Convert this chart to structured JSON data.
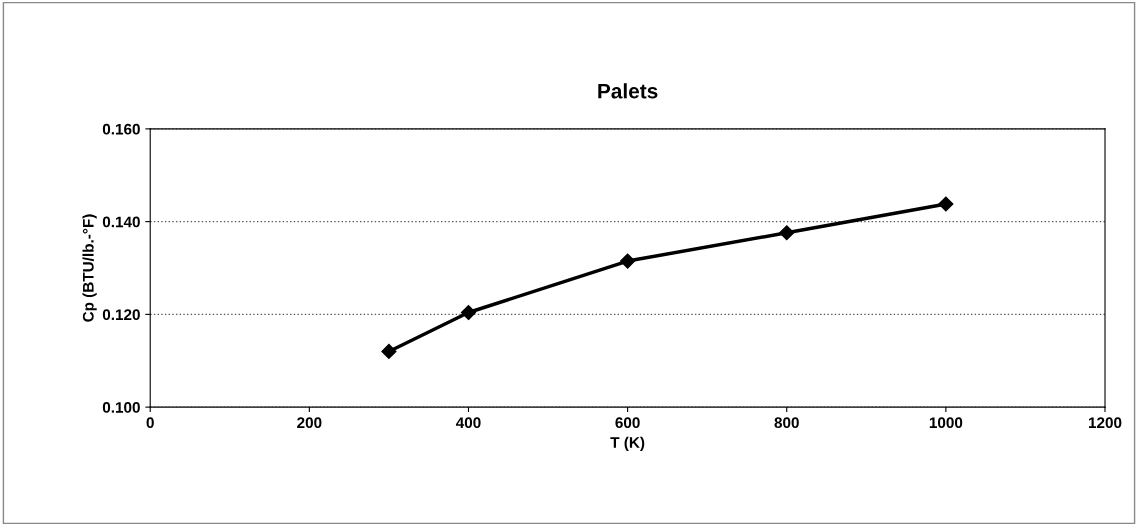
{
  "chart_data": {
    "type": "line",
    "title": "Palets",
    "xlabel": "T (K)",
    "ylabel": "Cp (BTU/lb.-°F)",
    "x": [
      300,
      400,
      600,
      800,
      1000
    ],
    "series": [
      {
        "color": "#000000",
        "values": [
          0.112,
          0.1204,
          0.1315,
          0.1376,
          0.1438
        ]
      }
    ],
    "xlim": [
      0,
      1200
    ],
    "xticks": [
      0,
      200,
      400,
      600,
      800,
      1000,
      1200
    ],
    "ylim": [
      0.1,
      0.16
    ],
    "yticks": [
      {
        "value": 0.1,
        "label": "0.100"
      },
      {
        "value": 0.12,
        "label": "0.120"
      },
      {
        "value": 0.14,
        "label": "0.140"
      },
      {
        "value": 0.16,
        "label": "0.160"
      }
    ],
    "grid": "y",
    "marker": "diamond",
    "line_style": "solid"
  }
}
